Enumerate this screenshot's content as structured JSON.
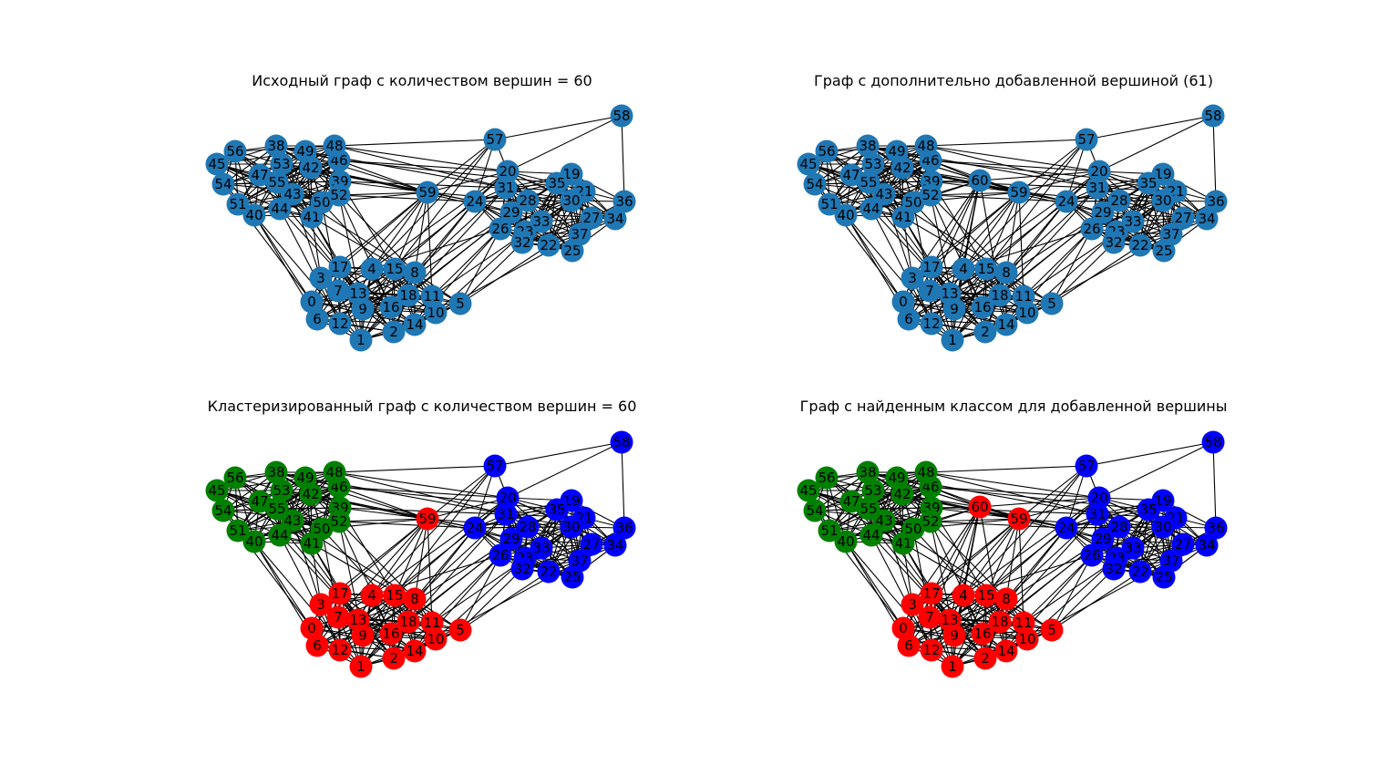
{
  "figure": {
    "panels": [
      {
        "id": "original",
        "title": "Исходный граф с количеством вершин = 60",
        "include_extra_node": false,
        "colored": false
      },
      {
        "id": "with-added-node",
        "title": "Граф с дополнительно добавленной вершиной (61)",
        "include_extra_node": true,
        "colored": false
      },
      {
        "id": "clustered",
        "title": "Кластеризированный граф с количеством вершин = 60",
        "include_extra_node": false,
        "colored": true
      },
      {
        "id": "classified",
        "title": "Граф с найденным классом для добавленной вершины",
        "include_extra_node": true,
        "colored": true
      }
    ]
  },
  "colors": {
    "default_node": "#1f77b4",
    "cluster_red": "#ff0000",
    "cluster_green": "#008000",
    "cluster_blue": "#0000ff",
    "edge": "#000000",
    "text": "#000000"
  },
  "graph": {
    "node_ids": [
      "0",
      "1",
      "2",
      "3",
      "4",
      "5",
      "6",
      "7",
      "8",
      "9",
      "10",
      "11",
      "12",
      "13",
      "14",
      "15",
      "16",
      "17",
      "18",
      "19",
      "20",
      "21",
      "22",
      "23",
      "24",
      "25",
      "26",
      "27",
      "28",
      "29",
      "30",
      "31",
      "32",
      "33",
      "34",
      "35",
      "36",
      "37",
      "38",
      "39",
      "40",
      "41",
      "42",
      "43",
      "44",
      "45",
      "46",
      "47",
      "48",
      "49",
      "50",
      "51",
      "52",
      "53",
      "54",
      "55",
      "56",
      "57",
      "58",
      "59"
    ],
    "extra_node_id": "60",
    "clusters": {
      "red": [
        "0",
        "1",
        "2",
        "3",
        "4",
        "5",
        "6",
        "7",
        "8",
        "9",
        "10",
        "11",
        "12",
        "13",
        "14",
        "15",
        "16",
        "17",
        "18",
        "59"
      ],
      "green": [
        "38",
        "39",
        "40",
        "41",
        "42",
        "43",
        "44",
        "45",
        "46",
        "47",
        "48",
        "49",
        "50",
        "51",
        "52",
        "53",
        "54",
        "55",
        "56"
      ],
      "blue": [
        "19",
        "20",
        "21",
        "22",
        "23",
        "24",
        "25",
        "26",
        "27",
        "28",
        "29",
        "30",
        "31",
        "32",
        "33",
        "34",
        "35",
        "36",
        "37",
        "57",
        "58"
      ]
    },
    "extra_node_cluster": "red"
  }
}
